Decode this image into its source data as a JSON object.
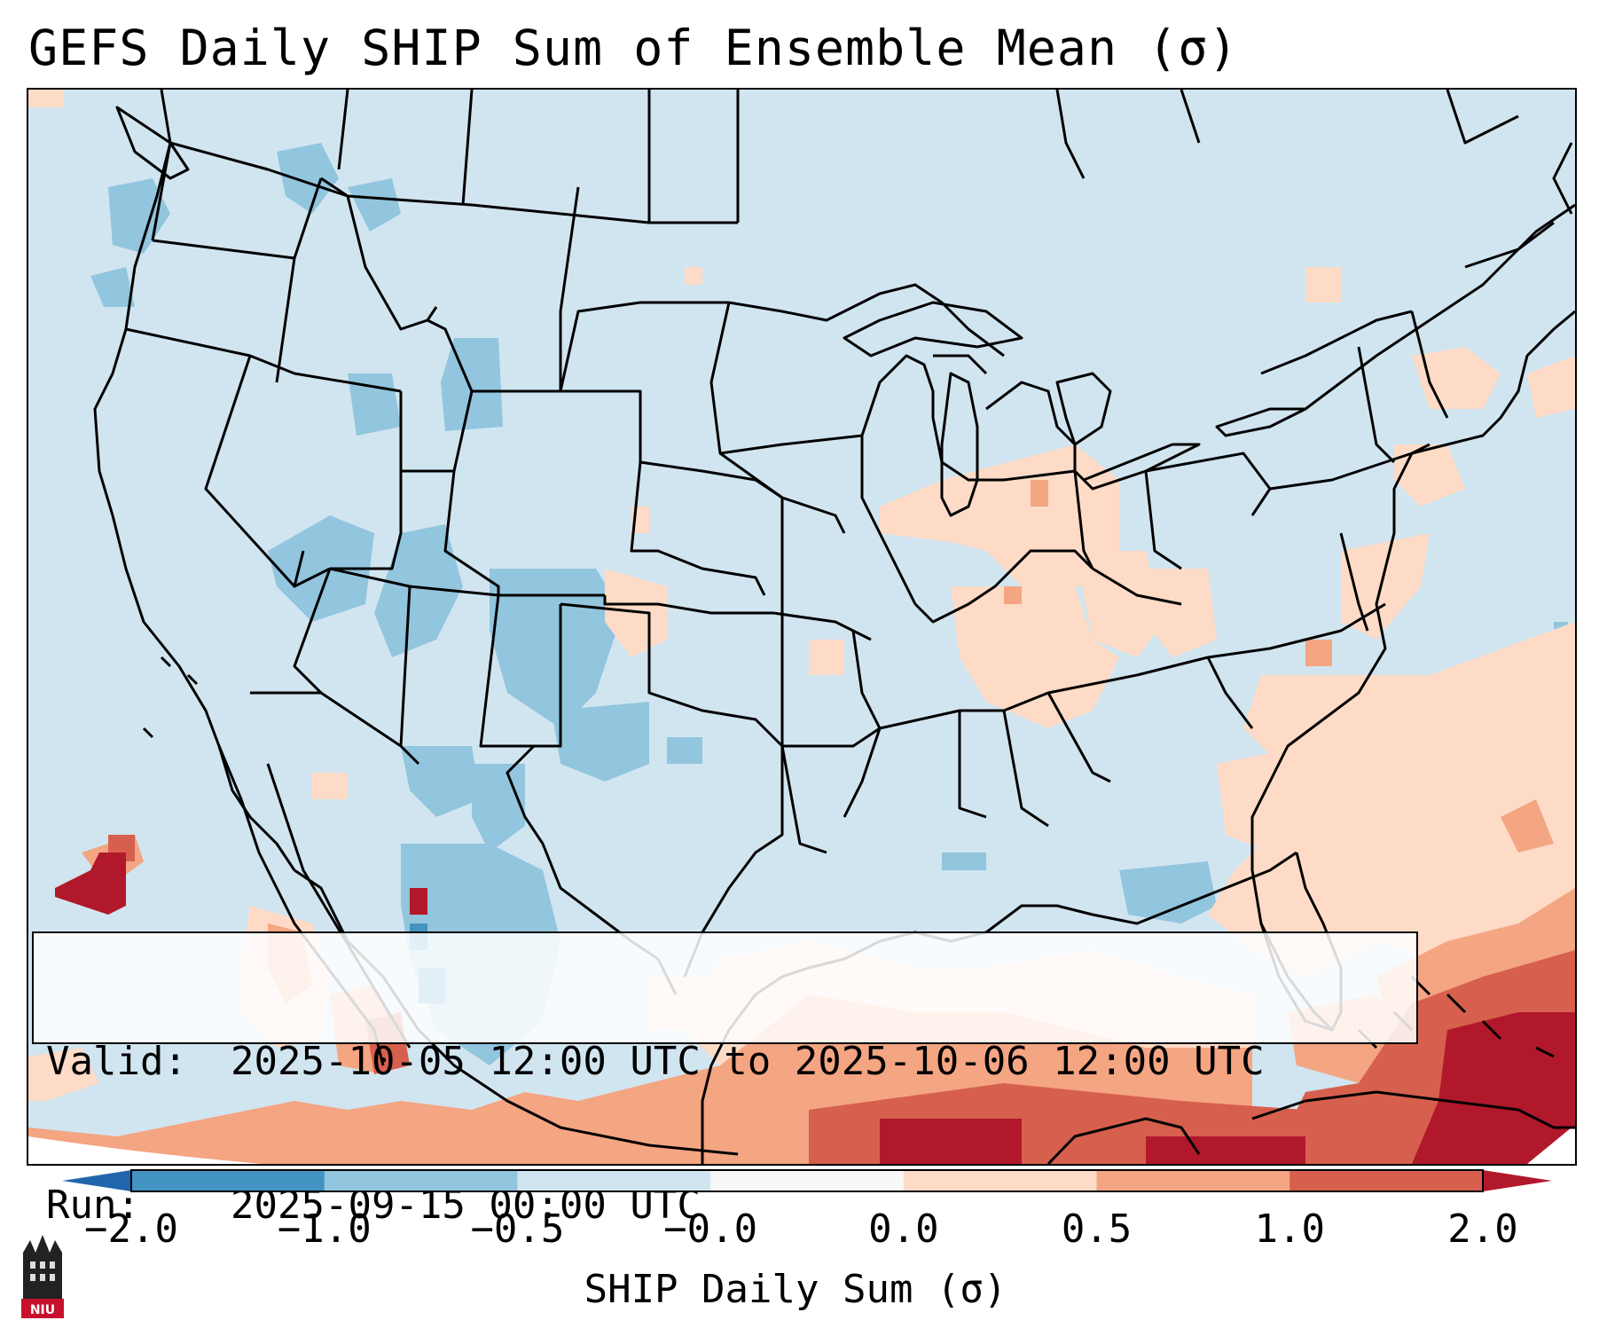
{
  "title": "GEFS Daily SHIP Sum of Ensemble Mean (σ)",
  "info": {
    "valid_label": "Valid:",
    "valid_value": "2025-10-05 12:00 UTC to 2025-10-06 12:00 UTC",
    "run_label": "Run:",
    "run_value": "2025-09-15 00:00 UTC"
  },
  "colorbar": {
    "label": "SHIP Daily Sum (σ)",
    "ticks": [
      "−2.0",
      "−1.0",
      "−0.5",
      "−0.0",
      "0.0",
      "0.5",
      "1.0",
      "2.0"
    ],
    "bins": [
      {
        "color": "#4393c3"
      },
      {
        "color": "#92c5de"
      },
      {
        "color": "#d1e5f0"
      },
      {
        "color": "#f7f7f7"
      },
      {
        "color": "#fddbc7"
      },
      {
        "color": "#f4a582"
      },
      {
        "color": "#d6604d"
      }
    ],
    "under_color": "#2166ac",
    "over_color": "#b2182b"
  },
  "logo": {
    "text": "NIU"
  }
}
